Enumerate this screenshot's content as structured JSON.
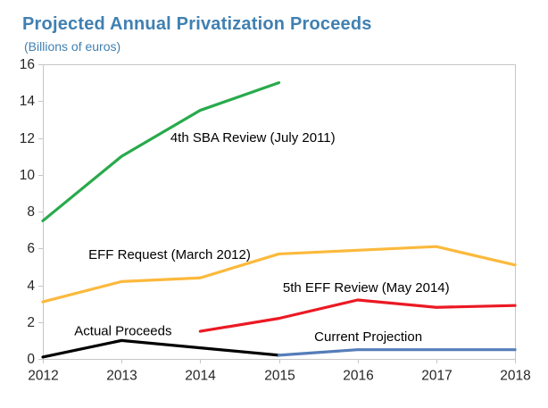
{
  "header": {
    "title": "Projected Annual Privatization Proceeds",
    "subtitle": "(Billions of euros)"
  },
  "theme": {
    "title_color": "#4080B2",
    "axis_text_color": "#262626",
    "axis_line_color": "#C6C6C6",
    "annotation_color": "#000000",
    "background": "#FFFFFF"
  },
  "chart_data": {
    "type": "line",
    "title": "Projected Annual Privatization Proceeds",
    "subtitle": "(Billions of euros)",
    "xlabel": "",
    "ylabel": "",
    "xlim": [
      2012,
      2018
    ],
    "ylim": [
      0,
      16
    ],
    "xticks": [
      2012,
      2013,
      2014,
      2015,
      2016,
      2017,
      2018
    ],
    "yticks": [
      0,
      2,
      4,
      6,
      8,
      10,
      12,
      14,
      16
    ],
    "grid": false,
    "legend_position": "inline-labels",
    "series": [
      {
        "id": "sba-review-2011",
        "name": "4th SBA Review (July 2011)",
        "color": "#28AA4B",
        "x": [
          2012,
          2013,
          2014,
          2015
        ],
        "values": [
          7.5,
          11.0,
          13.5,
          15.0
        ]
      },
      {
        "id": "eff-request-2012",
        "name": "EFF Request (March 2012)",
        "color": "#FBB93C",
        "x": [
          2012,
          2013,
          2014,
          2015,
          2016,
          2017,
          2018
        ],
        "values": [
          3.1,
          4.2,
          4.4,
          5.7,
          5.9,
          6.1,
          5.1
        ]
      },
      {
        "id": "eff-review-2014",
        "name": "5th EFF Review (May 2014)",
        "color": "#EB1923",
        "x": [
          2014,
          2015,
          2016,
          2017,
          2018
        ],
        "values": [
          1.5,
          2.2,
          3.2,
          2.8,
          2.9
        ]
      },
      {
        "id": "actual-proceeds",
        "name": "Actual Proceeds",
        "color": "#000000",
        "x": [
          2012,
          2013,
          2014,
          2015
        ],
        "values": [
          0.1,
          1.0,
          0.6,
          0.2
        ]
      },
      {
        "id": "current-projection",
        "name": "Current Projection",
        "color": "#557DB9",
        "x": [
          2015,
          2016,
          2017,
          2018
        ],
        "values": [
          0.2,
          0.5,
          0.5,
          0.5
        ]
      }
    ],
    "annotations": [
      {
        "text": "4th SBA Review (July 2011)",
        "ax": 2013.62,
        "ay": 12.0
      },
      {
        "text": "EFF Request (March 2012)",
        "ax": 2012.58,
        "ay": 5.65
      },
      {
        "text": "5th EFF Review (May 2014)",
        "ax": 2015.05,
        "ay": 3.85
      },
      {
        "text": "Actual Proceeds",
        "ax": 2012.4,
        "ay": 1.5
      },
      {
        "text": "Current Projection",
        "ax": 2015.45,
        "ay": 1.2
      }
    ]
  }
}
